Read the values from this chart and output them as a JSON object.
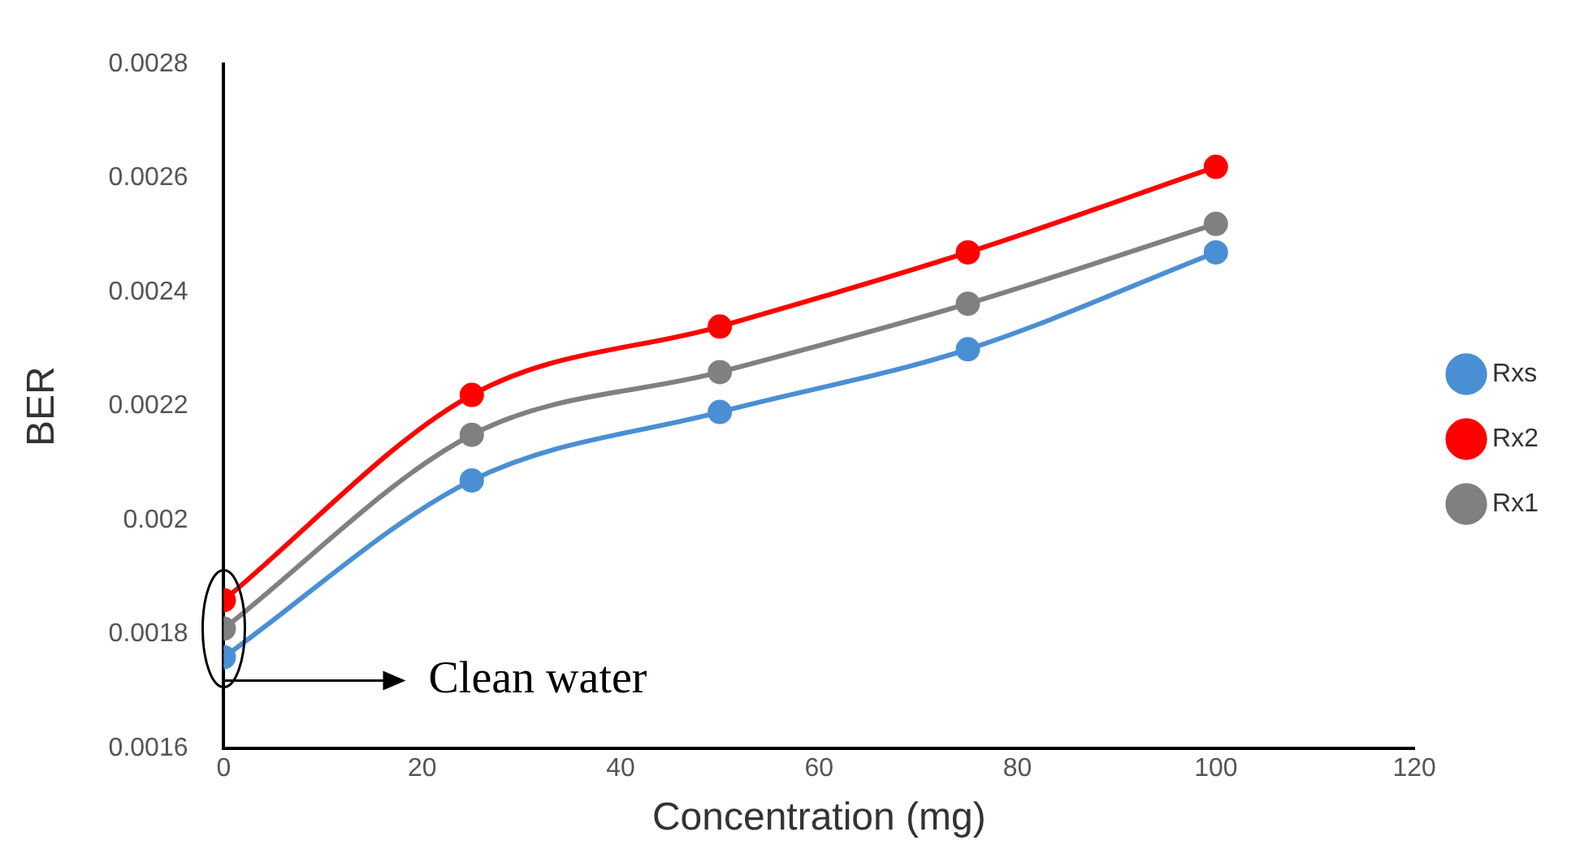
{
  "chart_data": {
    "type": "line",
    "xlabel": "Concentration (mg)",
    "ylabel": "BER",
    "x": [
      0,
      25,
      50,
      75,
      100
    ],
    "series": [
      {
        "name": "Rxs",
        "color": "#4a8fd4",
        "values": [
          0.00176,
          0.00207,
          0.00219,
          0.0023,
          0.00247
        ]
      },
      {
        "name": "Rx2",
        "color": "#ff0000",
        "values": [
          0.00186,
          0.00222,
          0.00234,
          0.00247,
          0.00262
        ]
      },
      {
        "name": "Rx1",
        "color": "#808080",
        "values": [
          0.00181,
          0.00215,
          0.00226,
          0.00238,
          0.00252
        ]
      }
    ],
    "xlim": [
      0,
      120
    ],
    "xticks": [
      0,
      20,
      40,
      60,
      80,
      100,
      120
    ],
    "ylim": [
      0.0016,
      0.0028
    ],
    "yticks": [
      0.0016,
      0.0018,
      0.002,
      0.0022,
      0.0024,
      0.0026,
      0.0028
    ],
    "annotations": [
      "Clean water"
    ],
    "grid": false,
    "legend": "right",
    "marker": "circle",
    "line_style": "solid"
  }
}
